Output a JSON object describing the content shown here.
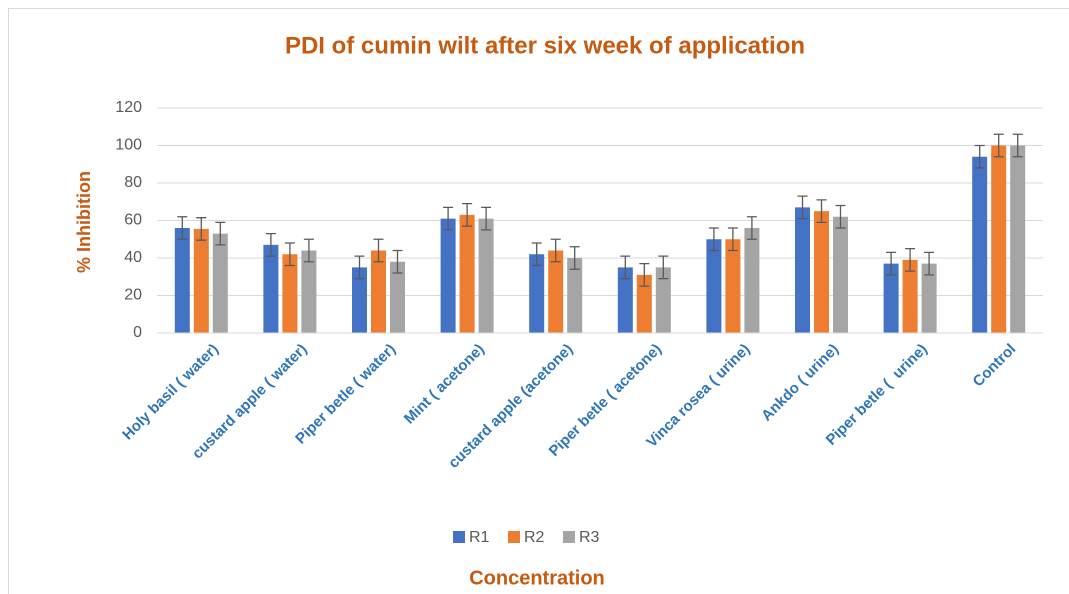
{
  "chart_data": {
    "type": "bar",
    "title": "PDI of cumin wilt after six week of application",
    "x_label": "Concentration",
    "y_label": "% Inhibition",
    "categories": [
      "Holy basil ( water)",
      "custard apple ( water)",
      "Piper betle ( water)",
      "Mint ( acetone)",
      "custard apple (acetone)",
      "Piper betle ( acetone)",
      "Vinca rosea ( urine)",
      "Ankdo ( urine)",
      "Piper betle (  urine)",
      "Control"
    ],
    "series": [
      {
        "name": "R1",
        "color": "#4472c4",
        "values": [
          56,
          47,
          35,
          61,
          42,
          35,
          50,
          67,
          37,
          94
        ],
        "errors": [
          6,
          6,
          6,
          6,
          6,
          6,
          6,
          6,
          6,
          6
        ]
      },
      {
        "name": "R2",
        "color": "#ed7d31",
        "values": [
          55.5,
          42,
          44,
          63,
          44,
          31,
          50,
          65,
          39,
          100
        ],
        "errors": [
          6,
          6,
          6,
          6,
          6,
          6,
          6,
          6,
          6,
          6
        ]
      },
      {
        "name": "R3",
        "color": "#a5a5a5",
        "values": [
          53,
          44,
          38,
          61,
          40,
          35,
          56,
          62,
          37,
          100
        ],
        "errors": [
          6,
          6,
          6,
          6,
          6,
          6,
          6,
          6,
          6,
          6
        ]
      }
    ],
    "ylim": [
      0,
      120
    ],
    "yticks": [
      0,
      20,
      40,
      60,
      80,
      100,
      120
    ],
    "grid": true,
    "legend": "bottom"
  }
}
